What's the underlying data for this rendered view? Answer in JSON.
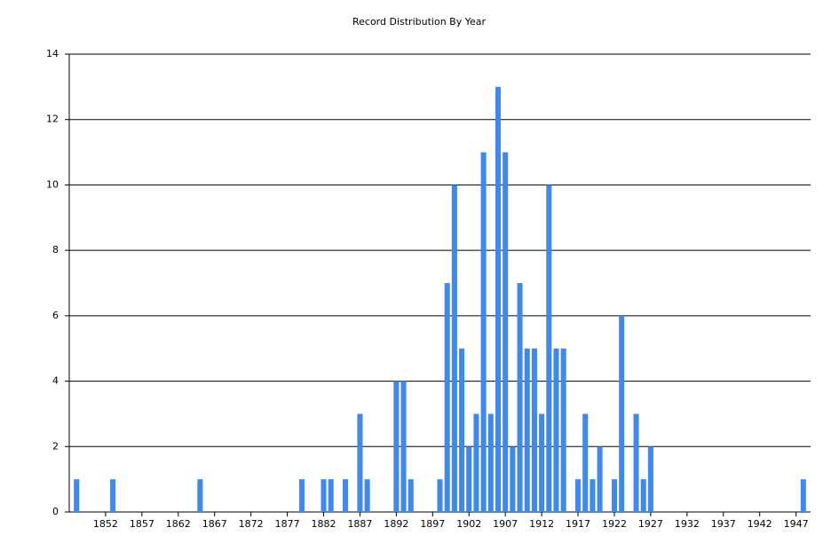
{
  "chart_data": {
    "type": "bar",
    "title": "Record Distribution By Year",
    "x": [
      1848,
      1853,
      1865,
      1879,
      1882,
      1883,
      1885,
      1887,
      1888,
      1892,
      1893,
      1894,
      1898,
      1899,
      1900,
      1901,
      1902,
      1903,
      1904,
      1905,
      1906,
      1907,
      1908,
      1909,
      1910,
      1911,
      1912,
      1913,
      1914,
      1915,
      1917,
      1918,
      1919,
      1920,
      1922,
      1923,
      1925,
      1926,
      1927,
      1948
    ],
    "values": [
      1,
      1,
      1,
      1,
      1,
      1,
      1,
      3,
      1,
      4,
      4,
      1,
      1,
      7,
      10,
      5,
      2,
      3,
      11,
      3,
      13,
      11,
      2,
      7,
      5,
      5,
      3,
      10,
      5,
      5,
      1,
      3,
      1,
      2,
      1,
      6,
      3,
      1,
      2,
      1
    ],
    "color": "#4189e8",
    "xlim": [
      1847,
      1949
    ],
    "xticks": [
      1852,
      1857,
      1862,
      1867,
      1872,
      1877,
      1882,
      1887,
      1892,
      1897,
      1902,
      1907,
      1912,
      1917,
      1922,
      1927,
      1932,
      1937,
      1942,
      1947
    ],
    "ylim": [
      0,
      14
    ],
    "yticks": [
      0,
      2,
      4,
      6,
      8,
      10,
      12,
      14
    ],
    "grid": true
  }
}
